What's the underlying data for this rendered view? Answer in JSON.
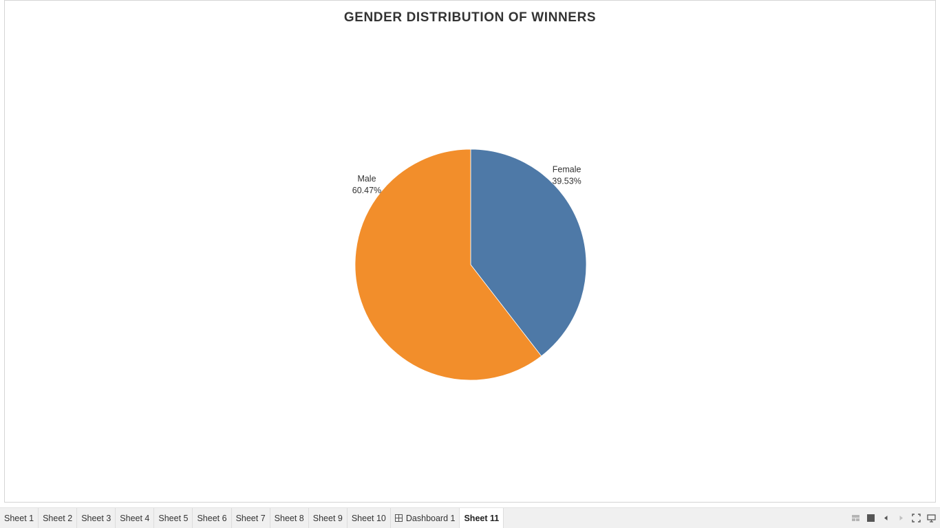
{
  "title": "GENDER DISTRIBUTION OF WINNERS",
  "chart_data": {
    "type": "pie",
    "title": "GENDER DISTRIBUTION OF WINNERS",
    "slices": [
      {
        "label": "Female",
        "value": 39.53,
        "value_label": "39.53%",
        "color": "#4e79a7"
      },
      {
        "label": "Male",
        "value": 60.47,
        "value_label": "60.47%",
        "color": "#f28e2b"
      }
    ],
    "start": "12 o'clock",
    "direction": "clockwise",
    "legend": "none",
    "label_placement": "outside"
  },
  "tabs": [
    {
      "label": "Sheet 1",
      "active": false
    },
    {
      "label": "Sheet 2",
      "active": false
    },
    {
      "label": "Sheet 3",
      "active": false
    },
    {
      "label": "Sheet 4",
      "active": false
    },
    {
      "label": "Sheet 5",
      "active": false
    },
    {
      "label": "Sheet 6",
      "active": false
    },
    {
      "label": "Sheet 7",
      "active": false
    },
    {
      "label": "Sheet 8",
      "active": false
    },
    {
      "label": "Sheet 9",
      "active": false
    },
    {
      "label": "Sheet 10",
      "active": false
    },
    {
      "label": "Dashboard 1",
      "active": false,
      "icon": "dashboard-grid-icon"
    },
    {
      "label": "Sheet 11",
      "active": true
    }
  ],
  "controls": [
    {
      "name": "show-filmstrip-icon"
    },
    {
      "name": "show-tabs-icon"
    },
    {
      "name": "previous-sheet-icon"
    },
    {
      "name": "next-sheet-icon"
    },
    {
      "name": "fit-window-icon"
    },
    {
      "name": "presentation-mode-icon"
    }
  ]
}
